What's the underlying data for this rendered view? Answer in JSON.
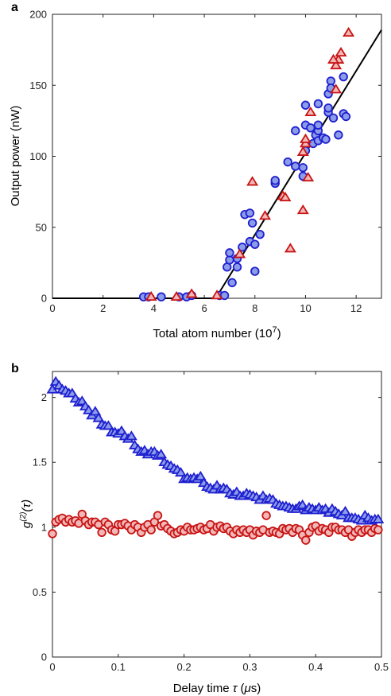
{
  "chart_data": [
    {
      "panel": "a",
      "type": "scatter",
      "xlabel": "Total atom number (10",
      "xlabel_exp": "7",
      "xlabel_close": ")",
      "ylabel": "Output power (nW)",
      "xlim": [
        0,
        13
      ],
      "ylim": [
        0,
        200
      ],
      "xticks": [
        0,
        2,
        4,
        6,
        8,
        10,
        12
      ],
      "yticks": [
        0,
        50,
        100,
        150,
        200
      ],
      "grid": false,
      "series": [
        {
          "marker": "circle",
          "color": "#1f1fd0",
          "fill": "#8b9ce8",
          "points": [
            [
              3.6,
              1
            ],
            [
              3.8,
              1
            ],
            [
              4.3,
              1
            ],
            [
              5.0,
              1
            ],
            [
              5.3,
              1
            ],
            [
              5.5,
              2
            ],
            [
              6.6,
              2
            ],
            [
              6.8,
              2
            ],
            [
              6.9,
              22
            ],
            [
              7.0,
              27
            ],
            [
              7.0,
              32
            ],
            [
              7.1,
              11
            ],
            [
              7.3,
              22
            ],
            [
              7.3,
              28
            ],
            [
              7.5,
              36
            ],
            [
              7.6,
              59
            ],
            [
              7.8,
              60
            ],
            [
              7.8,
              40
            ],
            [
              7.9,
              53
            ],
            [
              8.0,
              38
            ],
            [
              8.2,
              45
            ],
            [
              8.0,
              19
            ],
            [
              8.8,
              81
            ],
            [
              8.8,
              83
            ],
            [
              9.6,
              93
            ],
            [
              9.3,
              96
            ],
            [
              9.6,
              118
            ],
            [
              9.9,
              86
            ],
            [
              9.9,
              92
            ],
            [
              10.0,
              104
            ],
            [
              10.0,
              122
            ],
            [
              10.0,
              136
            ],
            [
              10.2,
              120
            ],
            [
              10.3,
              109
            ],
            [
              10.4,
              115
            ],
            [
              10.5,
              118
            ],
            [
              10.5,
              111
            ],
            [
              10.5,
              122
            ],
            [
              10.7,
              113
            ],
            [
              10.8,
              112
            ],
            [
              10.9,
              131
            ],
            [
              10.9,
              144
            ],
            [
              11.0,
              153
            ],
            [
              10.9,
              134
            ],
            [
              11.1,
              127
            ],
            [
              11.3,
              115
            ],
            [
              11.5,
              156
            ],
            [
              11.5,
              130
            ],
            [
              11.6,
              128
            ],
            [
              10.5,
              137
            ],
            [
              11.0,
              148
            ]
          ]
        },
        {
          "marker": "triangle",
          "color": "#c81414",
          "fill": "#f2b8b8",
          "points": [
            [
              3.9,
              1
            ],
            [
              4.9,
              1
            ],
            [
              5.5,
              3
            ],
            [
              6.5,
              2
            ],
            [
              7.4,
              31
            ],
            [
              7.9,
              82
            ],
            [
              8.4,
              58
            ],
            [
              9.1,
              72
            ],
            [
              9.2,
              71
            ],
            [
              9.4,
              35
            ],
            [
              9.9,
              62
            ],
            [
              9.9,
              103
            ],
            [
              10.0,
              109
            ],
            [
              10.0,
              112
            ],
            [
              10.1,
              85
            ],
            [
              10.2,
              131
            ],
            [
              11.2,
              147
            ],
            [
              11.2,
              164
            ],
            [
              11.3,
              168
            ],
            [
              11.1,
              168
            ],
            [
              11.4,
              173
            ],
            [
              11.7,
              187
            ]
          ]
        }
      ],
      "fit_line": [
        [
          0,
          0
        ],
        [
          6.45,
          0
        ],
        [
          13,
          189
        ]
      ]
    },
    {
      "panel": "b",
      "type": "scatter",
      "xlabel": "Delay time τ (μs)",
      "ylabel": "g(2)(τ)",
      "xlim": [
        0,
        0.5
      ],
      "ylim": [
        0,
        2.2
      ],
      "xticks": [
        0,
        0.1,
        0.2,
        0.3,
        0.4,
        0.5
      ],
      "xtick_labels": [
        "0",
        "0.1",
        "0.2",
        "0.3",
        "0.4",
        "0.5"
      ],
      "yticks": [
        0,
        0.5,
        1,
        1.5,
        2
      ],
      "ytick_labels": [
        "0",
        "0.5",
        "1",
        "1.5",
        "2"
      ],
      "grid": false,
      "series": [
        {
          "marker": "triangle",
          "color": "#1f1fd0",
          "fill": "#8b9ce8",
          "x": [
            0.0,
            0.005,
            0.01,
            0.015,
            0.02,
            0.025,
            0.03,
            0.035,
            0.04,
            0.045,
            0.05,
            0.055,
            0.06,
            0.065,
            0.07,
            0.075,
            0.08,
            0.085,
            0.09,
            0.095,
            0.1,
            0.105,
            0.11,
            0.115,
            0.12,
            0.125,
            0.13,
            0.135,
            0.14,
            0.145,
            0.15,
            0.155,
            0.16,
            0.165,
            0.17,
            0.175,
            0.18,
            0.185,
            0.19,
            0.195,
            0.2,
            0.205,
            0.21,
            0.215,
            0.22,
            0.225,
            0.23,
            0.235,
            0.24,
            0.245,
            0.25,
            0.255,
            0.26,
            0.265,
            0.27,
            0.275,
            0.28,
            0.285,
            0.29,
            0.295,
            0.3,
            0.305,
            0.31,
            0.315,
            0.32,
            0.325,
            0.33,
            0.335,
            0.34,
            0.345,
            0.35,
            0.355,
            0.36,
            0.365,
            0.37,
            0.375,
            0.38,
            0.385,
            0.39,
            0.395,
            0.4,
            0.405,
            0.41,
            0.415,
            0.42,
            0.425,
            0.43,
            0.435,
            0.44,
            0.445,
            0.45,
            0.455,
            0.46,
            0.465,
            0.47,
            0.475,
            0.48,
            0.485,
            0.49,
            0.495
          ],
          "y": [
            2.06,
            2.12,
            2.09,
            2.06,
            2.05,
            2.03,
            2.03,
            1.99,
            1.96,
            1.97,
            1.93,
            1.9,
            1.86,
            1.89,
            1.84,
            1.79,
            1.78,
            1.78,
            1.73,
            1.73,
            1.72,
            1.74,
            1.7,
            1.68,
            1.7,
            1.63,
            1.6,
            1.58,
            1.59,
            1.56,
            1.58,
            1.58,
            1.55,
            1.56,
            1.5,
            1.48,
            1.47,
            1.45,
            1.44,
            1.42,
            1.37,
            1.38,
            1.37,
            1.38,
            1.37,
            1.39,
            1.34,
            1.31,
            1.3,
            1.29,
            1.32,
            1.29,
            1.3,
            1.29,
            1.26,
            1.25,
            1.27,
            1.24,
            1.24,
            1.26,
            1.25,
            1.24,
            1.23,
            1.21,
            1.24,
            1.21,
            1.22,
            1.21,
            1.18,
            1.17,
            1.16,
            1.16,
            1.15,
            1.14,
            1.14,
            1.16,
            1.17,
            1.13,
            1.15,
            1.14,
            1.13,
            1.15,
            1.13,
            1.14,
            1.11,
            1.14,
            1.12,
            1.1,
            1.09,
            1.12,
            1.07,
            1.07,
            1.07,
            1.06,
            1.05,
            1.09,
            1.07,
            1.05,
            1.06,
            1.06
          ]
        },
        {
          "marker": "circle",
          "color": "#c81414",
          "fill": "#f2b8b8",
          "x": [
            0.0,
            0.005,
            0.01,
            0.015,
            0.02,
            0.025,
            0.03,
            0.035,
            0.04,
            0.045,
            0.05,
            0.055,
            0.06,
            0.065,
            0.07,
            0.075,
            0.08,
            0.085,
            0.09,
            0.095,
            0.1,
            0.105,
            0.11,
            0.115,
            0.12,
            0.125,
            0.13,
            0.135,
            0.14,
            0.145,
            0.15,
            0.155,
            0.16,
            0.165,
            0.17,
            0.175,
            0.18,
            0.185,
            0.19,
            0.195,
            0.2,
            0.205,
            0.21,
            0.215,
            0.22,
            0.225,
            0.23,
            0.235,
            0.24,
            0.245,
            0.25,
            0.255,
            0.26,
            0.265,
            0.27,
            0.275,
            0.28,
            0.285,
            0.29,
            0.295,
            0.3,
            0.305,
            0.31,
            0.315,
            0.32,
            0.325,
            0.33,
            0.335,
            0.34,
            0.345,
            0.35,
            0.355,
            0.36,
            0.365,
            0.37,
            0.375,
            0.38,
            0.385,
            0.39,
            0.395,
            0.4,
            0.405,
            0.41,
            0.415,
            0.42,
            0.425,
            0.43,
            0.435,
            0.44,
            0.445,
            0.45,
            0.455,
            0.46,
            0.465,
            0.47,
            0.475,
            0.48,
            0.485,
            0.49,
            0.495
          ],
          "y": [
            0.95,
            1.04,
            1.06,
            1.07,
            1.04,
            1.06,
            1.04,
            1.05,
            1.03,
            1.1,
            1.05,
            1.02,
            1.04,
            1.04,
            1.02,
            0.96,
            1.04,
            1.02,
            0.98,
            0.97,
            1.02,
            1.02,
            1.03,
            1.01,
            0.98,
            1.02,
            1.0,
            0.96,
            1.0,
            1.02,
            0.98,
            1.04,
            1.09,
            1.01,
            1.02,
            0.99,
            0.97,
            0.95,
            0.96,
            0.98,
            0.97,
            1.0,
            0.98,
            0.98,
            0.99,
            1.0,
            0.98,
            0.99,
            1.02,
            0.97,
            1.0,
            1.01,
            0.99,
            1.0,
            0.97,
            0.95,
            0.98,
            0.96,
            0.98,
            0.96,
            0.98,
            0.94,
            0.97,
            0.96,
            0.98,
            1.09,
            0.96,
            0.97,
            0.96,
            0.95,
            0.99,
            0.98,
            0.99,
            0.96,
            0.99,
            0.98,
            0.94,
            0.9,
            0.96,
            1.0,
            1.01,
            0.97,
            0.99,
            0.98,
            0.96,
            1.0,
            1.0,
            0.98,
            0.98,
            0.96,
            0.98,
            0.93,
            0.96,
            0.98,
            0.96,
            0.98,
            0.98,
            0.96,
            0.99,
            0.98
          ]
        }
      ]
    }
  ]
}
